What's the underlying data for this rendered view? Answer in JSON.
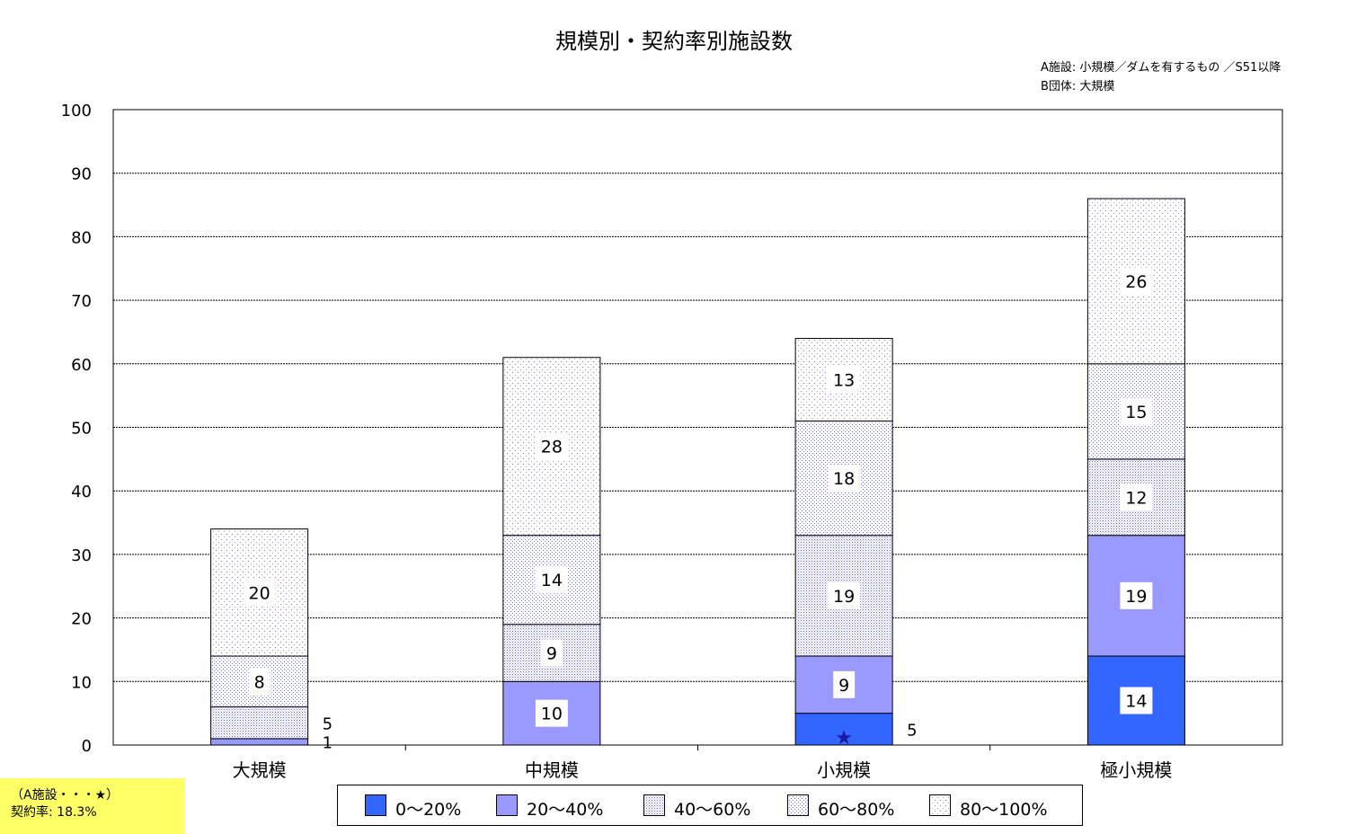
{
  "chart_data": {
    "type": "bar",
    "stacked": true,
    "title": "規模別・契約率別施設数",
    "categories": [
      "大規模",
      "中規模",
      "小規模",
      "極小規模"
    ],
    "series": [
      {
        "name": "0～20%",
        "values": [
          0,
          0,
          5,
          14
        ],
        "color": "#3366ff",
        "pattern": "solid"
      },
      {
        "name": "20～40%",
        "values": [
          1,
          10,
          9,
          19
        ],
        "color": "#9999ff",
        "pattern": "solid"
      },
      {
        "name": "40～60%",
        "values": [
          5,
          9,
          19,
          12
        ],
        "color": "#9999ff",
        "pattern": "dense-dots"
      },
      {
        "name": "60～80%",
        "values": [
          8,
          14,
          18,
          15
        ],
        "color": "#9999ff",
        "pattern": "medium-dots"
      },
      {
        "name": "80～100%",
        "values": [
          20,
          28,
          13,
          26
        ],
        "color": "#9999ff",
        "pattern": "sparse-dots"
      }
    ],
    "outside_labels": [
      {
        "category": "大規模",
        "series": "20～40%",
        "text": "1"
      },
      {
        "category": "大規模",
        "series": "40～60%",
        "text": "5"
      },
      {
        "category": "小規模",
        "series": "0～20%",
        "text": "5"
      }
    ],
    "markers": [
      {
        "category": "小規模",
        "series": "0～20%",
        "symbol": "★"
      }
    ],
    "ylim": [
      0,
      100
    ],
    "yticks": [
      0,
      10,
      20,
      30,
      40,
      50,
      60,
      70,
      80,
      90,
      100
    ],
    "xlabel": "",
    "ylabel": "",
    "grid": true,
    "legend_position": "bottom"
  },
  "notes": {
    "line1": "A施設: 小規模／ダムを有するもの ／S51以降",
    "line2": "B団体: 大規模"
  },
  "footnote": {
    "line1": "（A施設・・・★）",
    "line2": "契約率: 18.3%",
    "background": "#ffff66"
  },
  "colors": {
    "accent_dark": "#3366ff",
    "accent_light": "#9999ff",
    "star": "#1a1aa0"
  }
}
